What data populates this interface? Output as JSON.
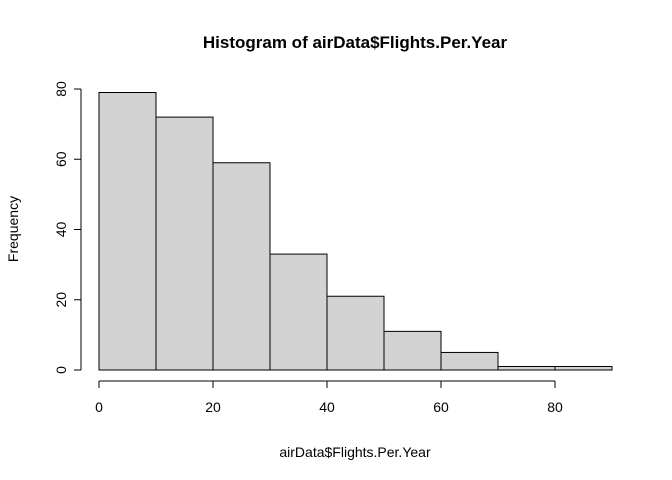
{
  "chart_data": {
    "type": "bar",
    "subtype": "histogram",
    "title": "Histogram of airData$Flights.Per.Year",
    "xlabel": "airData$Flights.Per.Year",
    "ylabel": "Frequency",
    "bins": [
      {
        "start": 0,
        "end": 10,
        "count": 79
      },
      {
        "start": 10,
        "end": 20,
        "count": 72
      },
      {
        "start": 20,
        "end": 30,
        "count": 59
      },
      {
        "start": 30,
        "end": 40,
        "count": 33
      },
      {
        "start": 40,
        "end": 50,
        "count": 21
      },
      {
        "start": 50,
        "end": 60,
        "count": 11
      },
      {
        "start": 60,
        "end": 70,
        "count": 5
      },
      {
        "start": 70,
        "end": 80,
        "count": 1
      },
      {
        "start": 80,
        "end": 90,
        "count": 1
      }
    ],
    "xlim": [
      0,
      90
    ],
    "ylim": [
      0,
      80
    ],
    "xticks": [
      0,
      20,
      40,
      60,
      80
    ],
    "yticks": [
      0,
      20,
      40,
      60,
      80
    ],
    "bar_fill": "#d3d3d3",
    "bar_stroke": "#000000",
    "grid": false,
    "legend": "none"
  }
}
